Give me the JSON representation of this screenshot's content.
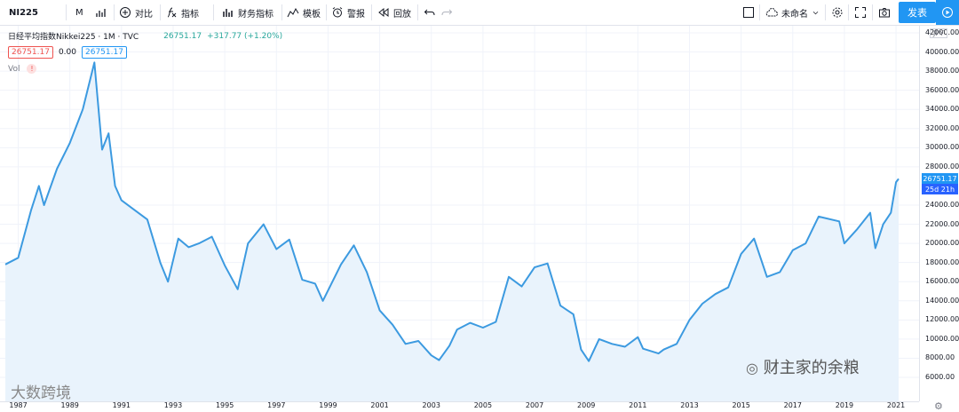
{
  "toolbar": {
    "symbol": "NI225",
    "interval": "M",
    "compare": "对比",
    "indicators": "指标",
    "financials": "财务指标",
    "templates": "模板",
    "alert": "警报",
    "replay": "回放",
    "layout_name": "未命名",
    "publish": "发表"
  },
  "legend": {
    "title": "日经平均指数Nikkei225 · 1M · TVC",
    "price": "26751.17",
    "change": "+317.77 (+1.20%)",
    "ma_val1": "26751.17",
    "ma_val2": "0.00",
    "ma_val3": "26751.17",
    "vol": "Vol",
    "warn": "!"
  },
  "axis": {
    "currency": "JPY",
    "last_price": "26751.17",
    "countdown": "25d 21h",
    "y_labels": [
      "42000.00",
      "40000.00",
      "38000.00",
      "36000.00",
      "34000.00",
      "32000.00",
      "30000.00",
      "28000.00",
      "24000.00",
      "22000.00",
      "20000.00",
      "18000.00",
      "16000.00",
      "14000.00",
      "12000.00",
      "10000.00",
      "8000.00",
      "6000.00"
    ],
    "x_labels": [
      "1987",
      "1989",
      "1991",
      "1993",
      "1995",
      "1997",
      "1999",
      "2001",
      "2003",
      "2005",
      "2007",
      "2009",
      "2011",
      "2013",
      "2015",
      "2017",
      "2019",
      "2021"
    ]
  },
  "watermarks": {
    "left": "大数跨境",
    "right": "财主家的余粮"
  },
  "colors": {
    "line": "#3c9ae0",
    "fill": "#e9f3fc",
    "accent": "#2196f3",
    "badge_countdown": "#2962ff"
  },
  "chart_data": {
    "type": "area",
    "title": "日经平均指数Nikkei225 · 1M · TVC",
    "xlabel": "",
    "ylabel": "",
    "ylim": [
      5000,
      43000
    ],
    "x_range": [
      1986.5,
      2021.5
    ],
    "x": [
      1986.5,
      1987.0,
      1987.5,
      1987.8,
      1988.0,
      1988.5,
      1989.0,
      1989.5,
      1989.95,
      1990.25,
      1990.5,
      1990.75,
      1991.0,
      1991.5,
      1992.0,
      1992.5,
      1992.8,
      1993.2,
      1993.6,
      1994.0,
      1994.5,
      1995.0,
      1995.5,
      1995.9,
      1996.5,
      1997.0,
      1997.5,
      1998.0,
      1998.5,
      1998.8,
      1999.5,
      2000.0,
      2000.5,
      2001.0,
      2001.5,
      2002.0,
      2002.5,
      2003.0,
      2003.3,
      2003.7,
      2004.0,
      2004.5,
      2005.0,
      2005.5,
      2006.0,
      2006.5,
      2007.0,
      2007.5,
      2008.0,
      2008.5,
      2008.8,
      2009.1,
      2009.5,
      2010.0,
      2010.5,
      2011.0,
      2011.2,
      2011.8,
      2012.0,
      2012.5,
      2013.0,
      2013.5,
      2014.0,
      2014.5,
      2015.0,
      2015.5,
      2016.0,
      2016.5,
      2017.0,
      2017.5,
      2018.0,
      2018.8,
      2019.0,
      2019.5,
      2020.0,
      2020.2,
      2020.5,
      2020.8,
      2021.0,
      2021.1
    ],
    "values": [
      17800,
      18500,
      23500,
      26000,
      24000,
      27800,
      30500,
      34000,
      38900,
      29800,
      31500,
      26000,
      24500,
      23500,
      22500,
      18000,
      16000,
      20500,
      19600,
      20000,
      20700,
      17700,
      15200,
      20000,
      22000,
      19400,
      20400,
      16200,
      15800,
      14000,
      17800,
      19800,
      17000,
      13000,
      11500,
      9500,
      9800,
      8300,
      7800,
      9300,
      11000,
      11700,
      11200,
      11800,
      16500,
      15500,
      17500,
      17900,
      13500,
      12600,
      8900,
      7700,
      10000,
      9500,
      9200,
      10200,
      9000,
      8500,
      8900,
      9500,
      12000,
      13700,
      14700,
      15400,
      18900,
      20500,
      16500,
      17000,
      19300,
      20000,
      22800,
      22300,
      20000,
      21500,
      23200,
      19500,
      22000,
      23200,
      26400,
      26751
    ]
  }
}
